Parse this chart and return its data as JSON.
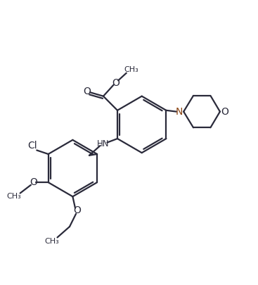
{
  "bg_color": "#ffffff",
  "line_color": "#2a2a3a",
  "line_width": 1.6,
  "figsize": [
    3.67,
    4.05
  ],
  "dpi": 100,
  "xlim": [
    0,
    10
  ],
  "ylim": [
    0,
    11
  ]
}
